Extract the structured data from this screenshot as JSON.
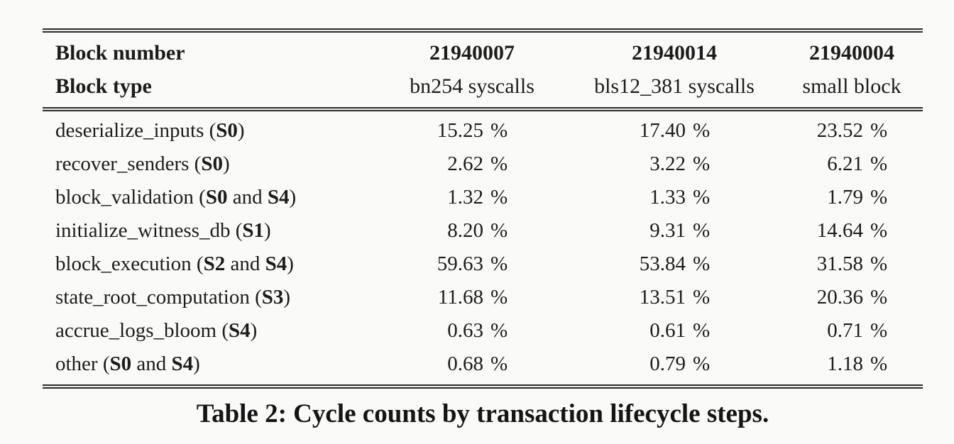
{
  "table": {
    "header": {
      "row1_label": "Block number",
      "row2_label": "Block type",
      "columns": [
        {
          "number": "21940007",
          "type": "bn254 syscalls"
        },
        {
          "number": "21940014",
          "type": "bls12_381 syscalls"
        },
        {
          "number": "21940004",
          "type": "small block"
        }
      ]
    },
    "percent_symbol": "%",
    "rows": [
      {
        "label_parts": [
          {
            "text": "deserialize_inputs (",
            "bold": false
          },
          {
            "text": "S0",
            "bold": true
          },
          {
            "text": ")",
            "bold": false
          }
        ],
        "values": [
          "15.25",
          "17.40",
          "23.52"
        ]
      },
      {
        "label_parts": [
          {
            "text": "recover_senders (",
            "bold": false
          },
          {
            "text": "S0",
            "bold": true
          },
          {
            "text": ")",
            "bold": false
          }
        ],
        "values": [
          "2.62",
          "3.22",
          "6.21"
        ]
      },
      {
        "label_parts": [
          {
            "text": "block_validation (",
            "bold": false
          },
          {
            "text": "S0",
            "bold": true
          },
          {
            "text": " and ",
            "bold": false
          },
          {
            "text": "S4",
            "bold": true
          },
          {
            "text": ")",
            "bold": false
          }
        ],
        "values": [
          "1.32",
          "1.33",
          "1.79"
        ]
      },
      {
        "label_parts": [
          {
            "text": "initialize_witness_db (",
            "bold": false
          },
          {
            "text": "S1",
            "bold": true
          },
          {
            "text": ")",
            "bold": false
          }
        ],
        "values": [
          "8.20",
          "9.31",
          "14.64"
        ]
      },
      {
        "label_parts": [
          {
            "text": "block_execution (",
            "bold": false
          },
          {
            "text": "S2",
            "bold": true
          },
          {
            "text": " and ",
            "bold": false
          },
          {
            "text": "S4",
            "bold": true
          },
          {
            "text": ")",
            "bold": false
          }
        ],
        "values": [
          "59.63",
          "53.84",
          "31.58"
        ]
      },
      {
        "label_parts": [
          {
            "text": "state_root_computation (",
            "bold": false
          },
          {
            "text": "S3",
            "bold": true
          },
          {
            "text": ")",
            "bold": false
          }
        ],
        "values": [
          "11.68",
          "13.51",
          "20.36"
        ]
      },
      {
        "label_parts": [
          {
            "text": "accrue_logs_bloom (",
            "bold": false
          },
          {
            "text": "S4",
            "bold": true
          },
          {
            "text": ")",
            "bold": false
          }
        ],
        "values": [
          "0.63",
          "0.61",
          "0.71"
        ]
      },
      {
        "label_parts": [
          {
            "text": "other (",
            "bold": false
          },
          {
            "text": "S0",
            "bold": true
          },
          {
            "text": " and ",
            "bold": false
          },
          {
            "text": "S4",
            "bold": true
          },
          {
            "text": ")",
            "bold": false
          }
        ],
        "values": [
          "0.68",
          "0.79",
          "1.18"
        ]
      }
    ]
  },
  "caption": "Table 2: Cycle counts by transaction lifecycle steps."
}
